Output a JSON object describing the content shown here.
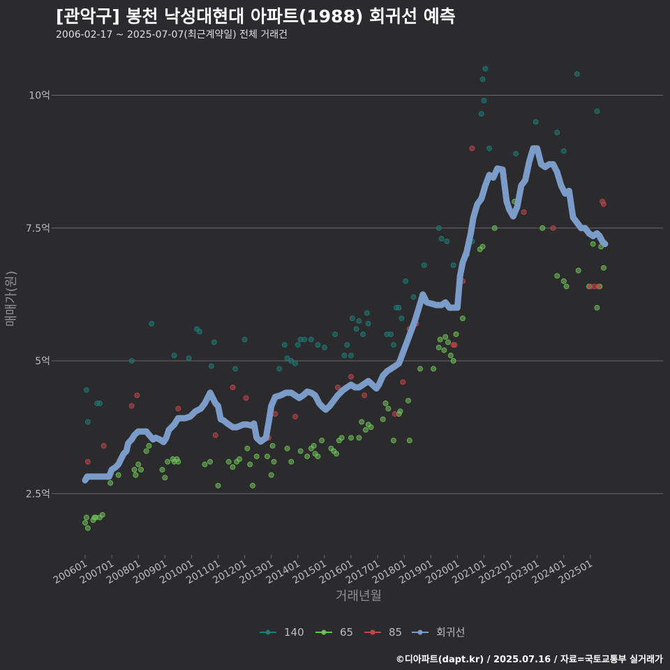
{
  "title": "[관악구] 봉천 낙성대현대 아파트(1988) 회귀선 예측",
  "subtitle": "2006-02-17 ~ 2025-07-07(최근계약일) 전체 거래건",
  "caption": "©디아파트(dapt.kr) / 2025.07.16 / 자료=국토교통부 실거래가",
  "colors": {
    "background": "#2b2a2c",
    "grid": "#6a6a6a",
    "140": "#1f7a78",
    "65": "#6fbf5a",
    "85": "#c0464c",
    "trend": "#7b9cc8"
  },
  "chart_data": {
    "type": "scatter",
    "xlabel": "거래년월",
    "ylabel": "매매가(원)",
    "x_tick_labels": [
      "200601",
      "200701",
      "200801",
      "200901",
      "201001",
      "201101",
      "201201",
      "201301",
      "201401",
      "201501",
      "201601",
      "201701",
      "201801",
      "201901",
      "202001",
      "202101",
      "202201",
      "202301",
      "202401",
      "202501"
    ],
    "y_ticks": [
      {
        "value": 2.5,
        "label": "2.5억"
      },
      {
        "value": 5,
        "label": "5억"
      },
      {
        "value": 7.5,
        "label": "7.5억"
      },
      {
        "value": 10,
        "label": "10억"
      }
    ],
    "xlim": [
      2006.0,
      2025.5
    ],
    "ylim": [
      1.5,
      10.8
    ],
    "legend": [
      "140",
      "65",
      "85",
      "회귀선"
    ],
    "legend_position": "bottom",
    "series": [
      {
        "name": "140",
        "points": [
          [
            2006.05,
            4.45
          ],
          [
            2006.1,
            3.85
          ],
          [
            2006.45,
            4.2
          ],
          [
            2006.55,
            4.2
          ],
          [
            2007.75,
            5.0
          ],
          [
            2008.5,
            5.7
          ],
          [
            2009.35,
            5.1
          ],
          [
            2009.9,
            5.05
          ],
          [
            2010.2,
            5.6
          ],
          [
            2010.3,
            5.55
          ],
          [
            2010.75,
            4.9
          ],
          [
            2010.85,
            5.35
          ],
          [
            2011.65,
            4.85
          ],
          [
            2012.0,
            5.4
          ],
          [
            2013.3,
            4.85
          ],
          [
            2013.5,
            5.3
          ],
          [
            2013.6,
            5.05
          ],
          [
            2013.75,
            5.0
          ],
          [
            2013.9,
            4.95
          ],
          [
            2014.0,
            5.3
          ],
          [
            2014.1,
            5.4
          ],
          [
            2014.25,
            5.4
          ],
          [
            2014.5,
            5.4
          ],
          [
            2014.75,
            5.3
          ],
          [
            2015.0,
            5.25
          ],
          [
            2015.4,
            5.5
          ],
          [
            2015.75,
            5.1
          ],
          [
            2015.85,
            5.3
          ],
          [
            2016.0,
            5.1
          ],
          [
            2016.05,
            5.8
          ],
          [
            2016.2,
            5.6
          ],
          [
            2016.3,
            5.75
          ],
          [
            2016.45,
            5.5
          ],
          [
            2016.6,
            5.9
          ],
          [
            2016.65,
            5.7
          ],
          [
            2017.35,
            5.5
          ],
          [
            2017.5,
            5.5
          ],
          [
            2017.6,
            5.3
          ],
          [
            2017.7,
            6.0
          ],
          [
            2017.8,
            6.0
          ],
          [
            2017.9,
            5.8
          ],
          [
            2018.05,
            6.5
          ],
          [
            2018.35,
            6.2
          ],
          [
            2018.75,
            6.8
          ],
          [
            2019.3,
            7.5
          ],
          [
            2019.4,
            7.3
          ],
          [
            2019.6,
            7.25
          ],
          [
            2019.85,
            6.8
          ],
          [
            2020.55,
            7.25
          ],
          [
            2020.8,
            8.0
          ],
          [
            2020.9,
            9.65
          ],
          [
            2020.95,
            10.3
          ],
          [
            2021.0,
            9.9
          ],
          [
            2021.05,
            10.5
          ],
          [
            2021.2,
            9.0
          ],
          [
            2022.2,
            8.9
          ],
          [
            2022.95,
            9.5
          ],
          [
            2023.75,
            9.3
          ],
          [
            2024.0,
            8.95
          ],
          [
            2024.5,
            10.4
          ],
          [
            2025.25,
            9.7
          ],
          [
            2025.35,
            7.3
          ]
        ]
      },
      {
        "name": "65",
        "points": [
          [
            2006.0,
            1.95
          ],
          [
            2006.05,
            2.05
          ],
          [
            2006.1,
            1.85
          ],
          [
            2006.3,
            2.0
          ],
          [
            2006.35,
            2.05
          ],
          [
            2006.4,
            2.05
          ],
          [
            2006.55,
            2.05
          ],
          [
            2006.65,
            2.1
          ],
          [
            2006.95,
            2.7
          ],
          [
            2007.25,
            2.85
          ],
          [
            2007.85,
            2.95
          ],
          [
            2007.9,
            2.85
          ],
          [
            2008.0,
            3.05
          ],
          [
            2008.1,
            2.95
          ],
          [
            2008.3,
            3.3
          ],
          [
            2008.4,
            3.4
          ],
          [
            2008.9,
            2.95
          ],
          [
            2009.0,
            2.8
          ],
          [
            2009.1,
            3.1
          ],
          [
            2009.3,
            3.15
          ],
          [
            2009.35,
            3.1
          ],
          [
            2009.45,
            3.15
          ],
          [
            2009.5,
            3.1
          ],
          [
            2010.5,
            3.05
          ],
          [
            2010.7,
            3.1
          ],
          [
            2011.0,
            2.65
          ],
          [
            2011.4,
            3.1
          ],
          [
            2011.55,
            3.0
          ],
          [
            2011.7,
            3.1
          ],
          [
            2011.8,
            3.15
          ],
          [
            2012.1,
            3.35
          ],
          [
            2012.2,
            3.05
          ],
          [
            2012.3,
            2.65
          ],
          [
            2012.45,
            3.2
          ],
          [
            2012.85,
            3.2
          ],
          [
            2013.0,
            2.85
          ],
          [
            2013.05,
            3.4
          ],
          [
            2013.1,
            3.1
          ],
          [
            2013.6,
            3.35
          ],
          [
            2013.75,
            3.1
          ],
          [
            2014.1,
            3.3
          ],
          [
            2014.35,
            3.2
          ],
          [
            2014.5,
            3.35
          ],
          [
            2014.6,
            3.4
          ],
          [
            2014.65,
            3.25
          ],
          [
            2014.75,
            3.2
          ],
          [
            2014.9,
            3.5
          ],
          [
            2015.25,
            3.35
          ],
          [
            2015.35,
            3.3
          ],
          [
            2015.45,
            3.25
          ],
          [
            2015.55,
            3.5
          ],
          [
            2015.65,
            3.55
          ],
          [
            2016.0,
            3.55
          ],
          [
            2016.3,
            3.55
          ],
          [
            2016.4,
            3.85
          ],
          [
            2016.55,
            3.7
          ],
          [
            2016.65,
            3.8
          ],
          [
            2016.75,
            3.75
          ],
          [
            2017.2,
            3.9
          ],
          [
            2017.3,
            4.2
          ],
          [
            2017.4,
            4.1
          ],
          [
            2017.6,
            3.5
          ],
          [
            2017.8,
            4.0
          ],
          [
            2017.85,
            4.05
          ],
          [
            2018.15,
            4.25
          ],
          [
            2018.2,
            3.5
          ],
          [
            2018.6,
            4.85
          ],
          [
            2019.1,
            4.85
          ],
          [
            2019.3,
            5.25
          ],
          [
            2019.35,
            5.4
          ],
          [
            2019.5,
            5.2
          ],
          [
            2019.55,
            5.45
          ],
          [
            2019.65,
            5.35
          ],
          [
            2019.75,
            5.1
          ],
          [
            2019.85,
            5.0
          ],
          [
            2019.95,
            5.5
          ],
          [
            2020.2,
            5.8
          ],
          [
            2020.35,
            7.0
          ],
          [
            2020.85,
            7.1
          ],
          [
            2020.95,
            7.15
          ],
          [
            2021.4,
            7.5
          ],
          [
            2022.15,
            8.0
          ],
          [
            2023.2,
            7.5
          ],
          [
            2023.75,
            6.6
          ],
          [
            2024.0,
            6.5
          ],
          [
            2024.1,
            6.4
          ],
          [
            2024.55,
            6.7
          ],
          [
            2024.95,
            6.4
          ],
          [
            2025.1,
            7.2
          ],
          [
            2025.25,
            6.0
          ],
          [
            2025.35,
            6.4
          ],
          [
            2025.4,
            7.15
          ],
          [
            2025.5,
            6.75
          ]
        ]
      },
      {
        "name": "85",
        "points": [
          [
            2006.1,
            3.1
          ],
          [
            2006.7,
            3.4
          ],
          [
            2007.75,
            4.15
          ],
          [
            2007.95,
            4.35
          ],
          [
            2009.5,
            4.1
          ],
          [
            2010.9,
            3.6
          ],
          [
            2011.55,
            4.5
          ],
          [
            2012.05,
            4.3
          ],
          [
            2012.9,
            3.55
          ],
          [
            2013.15,
            4.0
          ],
          [
            2013.9,
            3.95
          ],
          [
            2015.5,
            4.5
          ],
          [
            2016.0,
            4.7
          ],
          [
            2016.5,
            4.35
          ],
          [
            2017.65,
            4.0
          ],
          [
            2017.95,
            4.6
          ],
          [
            2018.2,
            5.6
          ],
          [
            2018.45,
            5.7
          ],
          [
            2019.85,
            5.3
          ],
          [
            2019.9,
            5.3
          ],
          [
            2020.2,
            6.5
          ],
          [
            2020.55,
            9.0
          ],
          [
            2022.5,
            7.8
          ],
          [
            2023.6,
            7.5
          ],
          [
            2025.0,
            6.4
          ],
          [
            2025.15,
            6.4
          ],
          [
            2025.3,
            6.4
          ],
          [
            2025.45,
            8.0
          ],
          [
            2025.5,
            7.95
          ]
        ]
      }
    ],
    "trend": [
      [
        2006.0,
        2.75
      ],
      [
        2006.08,
        2.82
      ],
      [
        2006.9,
        2.82
      ],
      [
        2007.0,
        2.95
      ],
      [
        2007.15,
        3.0
      ],
      [
        2007.25,
        3.05
      ],
      [
        2007.35,
        3.15
      ],
      [
        2007.45,
        3.25
      ],
      [
        2007.55,
        3.3
      ],
      [
        2007.62,
        3.45
      ],
      [
        2007.75,
        3.52
      ],
      [
        2007.85,
        3.6
      ],
      [
        2008.0,
        3.67
      ],
      [
        2008.3,
        3.67
      ],
      [
        2008.55,
        3.52
      ],
      [
        2008.65,
        3.55
      ],
      [
        2008.8,
        3.52
      ],
      [
        2008.95,
        3.47
      ],
      [
        2009.05,
        3.55
      ],
      [
        2009.15,
        3.7
      ],
      [
        2009.35,
        3.8
      ],
      [
        2009.5,
        3.92
      ],
      [
        2009.75,
        3.92
      ],
      [
        2009.95,
        3.95
      ],
      [
        2010.15,
        4.05
      ],
      [
        2010.35,
        4.1
      ],
      [
        2010.5,
        4.2
      ],
      [
        2010.6,
        4.3
      ],
      [
        2010.7,
        4.4
      ],
      [
        2010.8,
        4.3
      ],
      [
        2010.9,
        4.2
      ],
      [
        2011.0,
        4.15
      ],
      [
        2011.1,
        3.9
      ],
      [
        2011.2,
        3.88
      ],
      [
        2011.35,
        3.82
      ],
      [
        2011.55,
        3.75
      ],
      [
        2011.7,
        3.75
      ],
      [
        2011.8,
        3.77
      ],
      [
        2011.95,
        3.8
      ],
      [
        2012.1,
        3.8
      ],
      [
        2012.25,
        3.78
      ],
      [
        2012.35,
        3.82
      ],
      [
        2012.45,
        3.55
      ],
      [
        2012.6,
        3.48
      ],
      [
        2012.8,
        3.55
      ],
      [
        2012.92,
        3.9
      ],
      [
        2013.0,
        4.15
      ],
      [
        2013.15,
        4.32
      ],
      [
        2013.35,
        4.35
      ],
      [
        2013.55,
        4.4
      ],
      [
        2013.75,
        4.4
      ],
      [
        2013.9,
        4.35
      ],
      [
        2014.05,
        4.3
      ],
      [
        2014.2,
        4.35
      ],
      [
        2014.35,
        4.42
      ],
      [
        2014.5,
        4.4
      ],
      [
        2014.65,
        4.35
      ],
      [
        2014.8,
        4.2
      ],
      [
        2014.95,
        4.12
      ],
      [
        2015.05,
        4.08
      ],
      [
        2015.2,
        4.15
      ],
      [
        2015.35,
        4.25
      ],
      [
        2015.5,
        4.35
      ],
      [
        2015.7,
        4.45
      ],
      [
        2015.85,
        4.5
      ],
      [
        2016.0,
        4.55
      ],
      [
        2016.15,
        4.5
      ],
      [
        2016.3,
        4.5
      ],
      [
        2016.45,
        4.55
      ],
      [
        2016.65,
        4.62
      ],
      [
        2016.8,
        4.55
      ],
      [
        2016.95,
        4.48
      ],
      [
        2017.05,
        4.55
      ],
      [
        2017.2,
        4.72
      ],
      [
        2017.35,
        4.8
      ],
      [
        2017.5,
        4.85
      ],
      [
        2017.65,
        4.9
      ],
      [
        2017.8,
        4.95
      ],
      [
        2017.95,
        5.15
      ],
      [
        2018.1,
        5.35
      ],
      [
        2018.25,
        5.55
      ],
      [
        2018.4,
        5.75
      ],
      [
        2018.55,
        6.0
      ],
      [
        2018.7,
        6.25
      ],
      [
        2018.85,
        6.1
      ],
      [
        2019.0,
        6.08
      ],
      [
        2019.2,
        6.05
      ],
      [
        2019.4,
        6.05
      ],
      [
        2019.55,
        6.1
      ],
      [
        2019.7,
        6.0
      ],
      [
        2019.85,
        6.0
      ],
      [
        2020.0,
        6.0
      ],
      [
        2020.1,
        6.6
      ],
      [
        2020.2,
        6.85
      ],
      [
        2020.35,
        7.05
      ],
      [
        2020.5,
        7.4
      ],
      [
        2020.6,
        7.7
      ],
      [
        2020.75,
        7.95
      ],
      [
        2020.9,
        8.05
      ],
      [
        2021.05,
        8.3
      ],
      [
        2021.2,
        8.5
      ],
      [
        2021.35,
        8.45
      ],
      [
        2021.5,
        8.62
      ],
      [
        2021.7,
        8.6
      ],
      [
        2021.85,
        8.0
      ],
      [
        2021.95,
        7.85
      ],
      [
        2022.1,
        7.72
      ],
      [
        2022.25,
        7.9
      ],
      [
        2022.4,
        8.3
      ],
      [
        2022.55,
        8.4
      ],
      [
        2022.7,
        8.75
      ],
      [
        2022.85,
        9.0
      ],
      [
        2023.0,
        9.0
      ],
      [
        2023.15,
        8.7
      ],
      [
        2023.3,
        8.65
      ],
      [
        2023.45,
        8.7
      ],
      [
        2023.6,
        8.7
      ],
      [
        2023.75,
        8.55
      ],
      [
        2023.9,
        8.3
      ],
      [
        2024.05,
        8.15
      ],
      [
        2024.2,
        8.2
      ],
      [
        2024.35,
        7.7
      ],
      [
        2024.5,
        7.6
      ],
      [
        2024.65,
        7.5
      ],
      [
        2024.8,
        7.5
      ],
      [
        2024.95,
        7.4
      ],
      [
        2025.1,
        7.35
      ],
      [
        2025.25,
        7.4
      ],
      [
        2025.35,
        7.35
      ],
      [
        2025.45,
        7.25
      ],
      [
        2025.55,
        7.2
      ]
    ]
  }
}
